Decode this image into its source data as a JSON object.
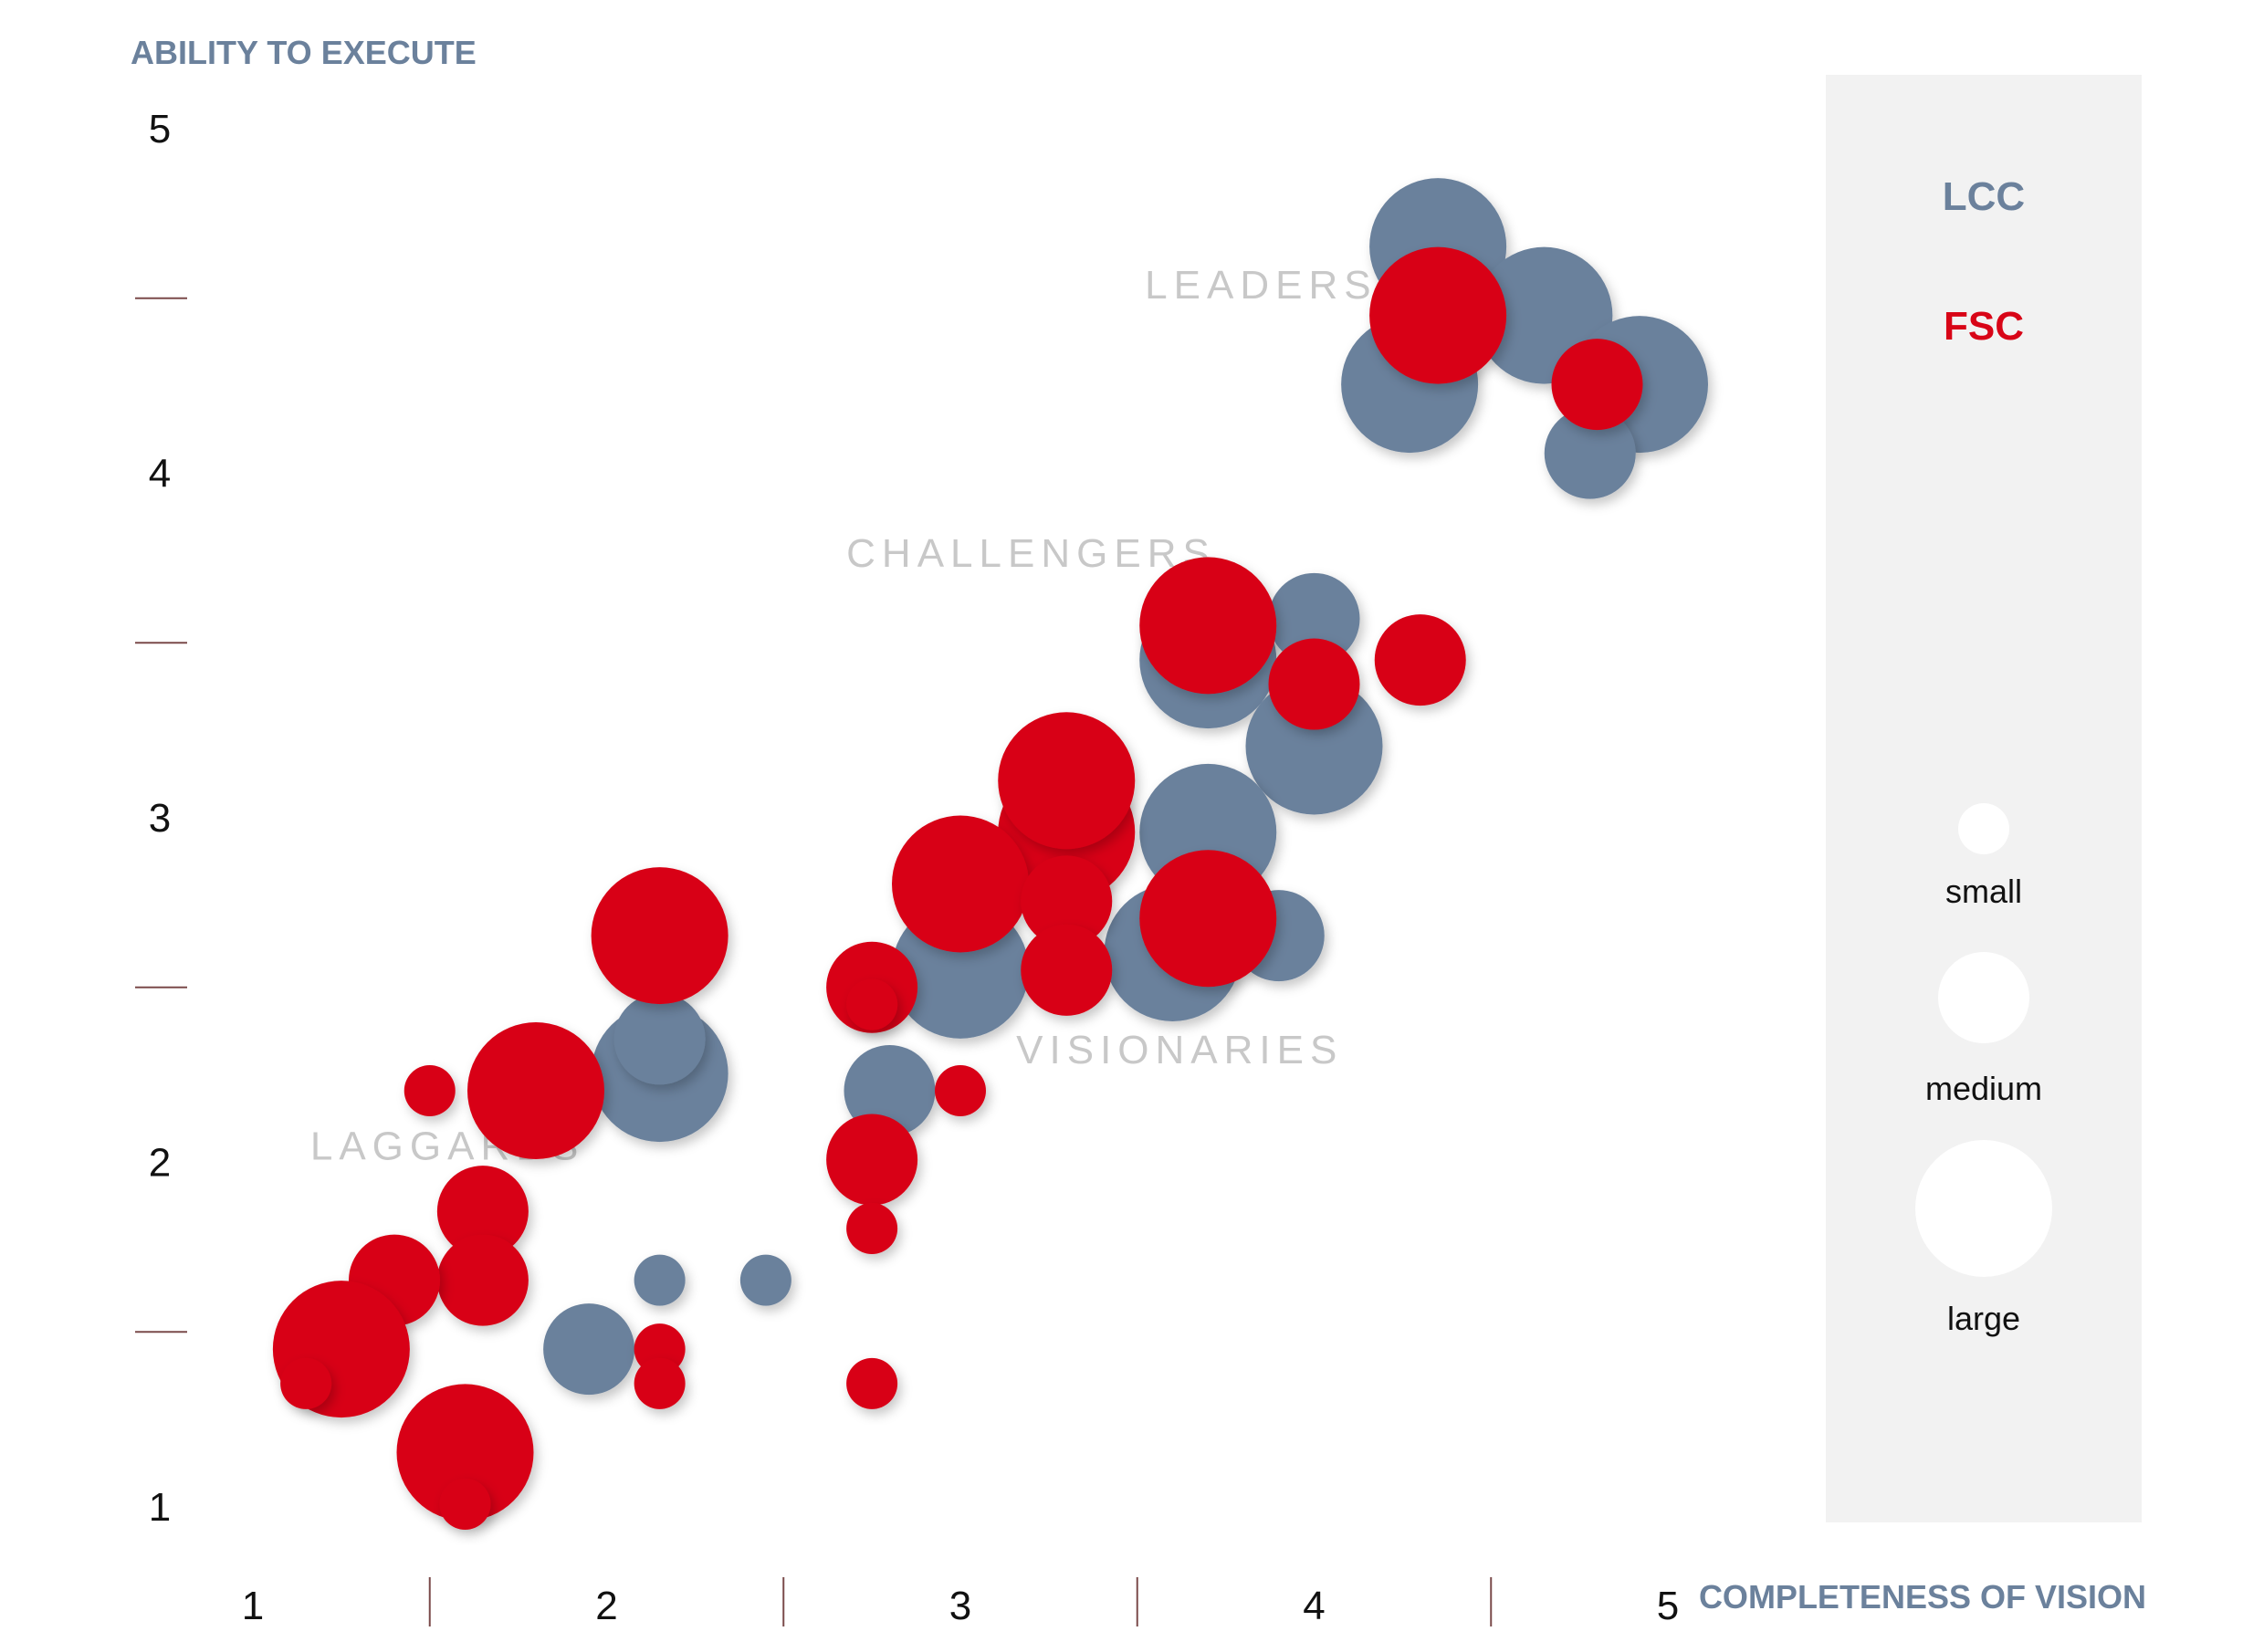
{
  "colors": {
    "lcc": "#6b819c",
    "fsc": "#d80517",
    "legend_bg": "#f2f2f2",
    "tick_line": "#7a4a4a",
    "axis_title": "#6b819c",
    "quadrant_label": "#c8c8c8"
  },
  "chart_data": {
    "type": "scatter",
    "title": "",
    "xlabel": "COMPLETENESS OF VISION",
    "ylabel": "ABILITY TO EXECUTE",
    "xlim": [
      1,
      5
    ],
    "ylim": [
      1,
      5
    ],
    "x_ticks": [
      "1",
      "2",
      "3",
      "4",
      "5"
    ],
    "y_ticks": [
      "1",
      "2",
      "3",
      "4",
      "5"
    ],
    "quadrants": [
      {
        "label": "LEADERS",
        "x": 3.85,
        "y": 4.5
      },
      {
        "label": "CHALLENGERS",
        "x": 3.2,
        "y": 3.72
      },
      {
        "label": "VISIONARIES",
        "x": 3.62,
        "y": 2.28
      },
      {
        "label": "LAGGARDS",
        "x": 1.55,
        "y": 2.0
      }
    ],
    "legend": {
      "categories": [
        {
          "key": "lcc",
          "label": "LCC"
        },
        {
          "key": "fsc",
          "label": "FSC"
        }
      ],
      "sizes": [
        {
          "label": "small",
          "size": 1
        },
        {
          "label": "medium",
          "size": 2
        },
        {
          "label": "large",
          "size": 3
        }
      ]
    },
    "series": [
      {
        "name": "LCC",
        "points": [
          {
            "x": 4.35,
            "y": 4.65,
            "size": 3
          },
          {
            "x": 4.65,
            "y": 4.45,
            "size": 3
          },
          {
            "x": 4.27,
            "y": 4.25,
            "size": 3
          },
          {
            "x": 4.92,
            "y": 4.25,
            "size": 3
          },
          {
            "x": 4.78,
            "y": 4.05,
            "size": 2
          },
          {
            "x": 3.7,
            "y": 3.45,
            "size": 3
          },
          {
            "x": 4.0,
            "y": 3.2,
            "size": 3
          },
          {
            "x": 4.0,
            "y": 3.57,
            "size": 2
          },
          {
            "x": 4.0,
            "y": 3.35,
            "size": 1
          },
          {
            "x": 3.7,
            "y": 2.95,
            "size": 3
          },
          {
            "x": 3.6,
            "y": 2.6,
            "size": 3
          },
          {
            "x": 3.9,
            "y": 2.65,
            "size": 2
          },
          {
            "x": 3.0,
            "y": 2.55,
            "size": 3
          },
          {
            "x": 2.8,
            "y": 2.2,
            "size": 2
          },
          {
            "x": 2.15,
            "y": 2.25,
            "size": 3
          },
          {
            "x": 2.15,
            "y": 2.35,
            "size": 2
          },
          {
            "x": 2.15,
            "y": 1.65,
            "size": 1
          },
          {
            "x": 2.45,
            "y": 1.65,
            "size": 1
          },
          {
            "x": 1.95,
            "y": 1.45,
            "size": 2
          }
        ]
      },
      {
        "name": "FSC",
        "points": [
          {
            "x": 4.35,
            "y": 4.45,
            "size": 3
          },
          {
            "x": 4.8,
            "y": 4.25,
            "size": 2
          },
          {
            "x": 3.7,
            "y": 3.55,
            "size": 3
          },
          {
            "x": 4.0,
            "y": 3.38,
            "size": 2
          },
          {
            "x": 4.3,
            "y": 3.45,
            "size": 2
          },
          {
            "x": 3.3,
            "y": 2.95,
            "size": 3
          },
          {
            "x": 3.3,
            "y": 3.1,
            "size": 3
          },
          {
            "x": 3.0,
            "y": 2.8,
            "size": 3
          },
          {
            "x": 3.3,
            "y": 2.75,
            "size": 2
          },
          {
            "x": 3.7,
            "y": 2.7,
            "size": 3
          },
          {
            "x": 3.3,
            "y": 2.55,
            "size": 2
          },
          {
            "x": 2.15,
            "y": 2.65,
            "size": 3
          },
          {
            "x": 2.75,
            "y": 2.5,
            "size": 2
          },
          {
            "x": 2.75,
            "y": 2.45,
            "size": 1
          },
          {
            "x": 3.0,
            "y": 2.2,
            "size": 1
          },
          {
            "x": 2.75,
            "y": 2.0,
            "size": 2
          },
          {
            "x": 2.75,
            "y": 1.8,
            "size": 1
          },
          {
            "x": 1.5,
            "y": 2.2,
            "size": 1
          },
          {
            "x": 1.8,
            "y": 2.2,
            "size": 3
          },
          {
            "x": 1.65,
            "y": 1.85,
            "size": 2
          },
          {
            "x": 1.65,
            "y": 1.65,
            "size": 2
          },
          {
            "x": 1.4,
            "y": 1.65,
            "size": 2
          },
          {
            "x": 1.25,
            "y": 1.45,
            "size": 3
          },
          {
            "x": 1.15,
            "y": 1.35,
            "size": 1
          },
          {
            "x": 1.6,
            "y": 1.15,
            "size": 3
          },
          {
            "x": 1.6,
            "y": 1.0,
            "size": 1
          },
          {
            "x": 2.15,
            "y": 1.45,
            "size": 1
          },
          {
            "x": 2.15,
            "y": 1.35,
            "size": 1
          },
          {
            "x": 2.75,
            "y": 1.35,
            "size": 1
          }
        ]
      }
    ]
  }
}
